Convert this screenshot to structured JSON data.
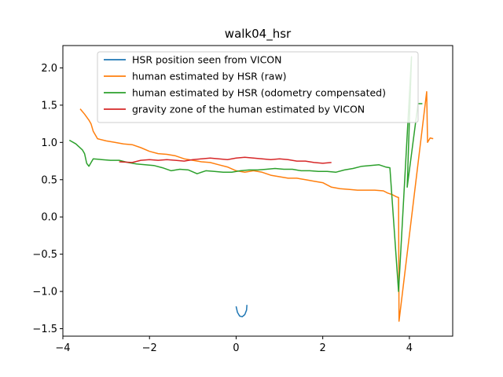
{
  "chart_data": {
    "type": "line",
    "title": "walk04_hsr",
    "xlabel": "",
    "ylabel": "",
    "xlim": [
      -4.0,
      5.0
    ],
    "ylim": [
      -1.6,
      2.3
    ],
    "x_ticks": [
      -4,
      -2,
      0,
      2,
      4
    ],
    "y_ticks": [
      -1.5,
      -1.0,
      -0.5,
      0.0,
      0.5,
      1.0,
      1.5,
      2.0
    ],
    "x_tick_labels": [
      "−4",
      "−2",
      "0",
      "2",
      "4"
    ],
    "y_tick_labels": [
      "−1.5",
      "−1.0",
      "−0.5",
      "0.0",
      "0.5",
      "1.0",
      "1.5",
      "2.0"
    ],
    "grid": false,
    "legend_position": "top-center",
    "series": [
      {
        "name": "HSR position seen from VICON",
        "color": "#1f77b4",
        "points": [
          [
            0.0,
            -1.2
          ],
          [
            0.03,
            -1.28
          ],
          [
            0.08,
            -1.33
          ],
          [
            0.14,
            -1.34
          ],
          [
            0.2,
            -1.31
          ],
          [
            0.24,
            -1.25
          ],
          [
            0.25,
            -1.18
          ]
        ]
      },
      {
        "name": "human estimated by HSR (raw)",
        "color": "#ff7f0e",
        "points": [
          [
            -3.6,
            1.45
          ],
          [
            -3.5,
            1.38
          ],
          [
            -3.4,
            1.3
          ],
          [
            -3.35,
            1.25
          ],
          [
            -3.3,
            1.15
          ],
          [
            -3.25,
            1.1
          ],
          [
            -3.2,
            1.05
          ],
          [
            -3.0,
            1.02
          ],
          [
            -2.8,
            1.0
          ],
          [
            -2.6,
            0.98
          ],
          [
            -2.4,
            0.97
          ],
          [
            -2.2,
            0.93
          ],
          [
            -2.0,
            0.88
          ],
          [
            -1.8,
            0.85
          ],
          [
            -1.6,
            0.84
          ],
          [
            -1.4,
            0.82
          ],
          [
            -1.2,
            0.78
          ],
          [
            -1.0,
            0.76
          ],
          [
            -0.8,
            0.74
          ],
          [
            -0.6,
            0.73
          ],
          [
            -0.4,
            0.7
          ],
          [
            -0.2,
            0.67
          ],
          [
            0.0,
            0.62
          ],
          [
            0.2,
            0.6
          ],
          [
            0.4,
            0.62
          ],
          [
            0.6,
            0.6
          ],
          [
            0.8,
            0.56
          ],
          [
            1.0,
            0.54
          ],
          [
            1.2,
            0.52
          ],
          [
            1.4,
            0.52
          ],
          [
            1.6,
            0.5
          ],
          [
            1.8,
            0.48
          ],
          [
            2.0,
            0.46
          ],
          [
            2.2,
            0.4
          ],
          [
            2.4,
            0.38
          ],
          [
            2.6,
            0.37
          ],
          [
            2.8,
            0.36
          ],
          [
            3.0,
            0.36
          ],
          [
            3.2,
            0.36
          ],
          [
            3.4,
            0.35
          ],
          [
            3.5,
            0.32
          ],
          [
            3.6,
            0.3
          ],
          [
            3.7,
            0.27
          ],
          [
            3.75,
            0.26
          ],
          [
            3.76,
            -1.4
          ],
          [
            4.4,
            1.68
          ],
          [
            4.42,
            1.0
          ],
          [
            4.48,
            1.06
          ],
          [
            4.55,
            1.05
          ]
        ]
      },
      {
        "name": "human estimated by HSR (odometry compensated)",
        "color": "#2ca02c",
        "points": [
          [
            -3.85,
            1.03
          ],
          [
            -3.7,
            0.98
          ],
          [
            -3.55,
            0.9
          ],
          [
            -3.5,
            0.85
          ],
          [
            -3.45,
            0.72
          ],
          [
            -3.4,
            0.68
          ],
          [
            -3.3,
            0.78
          ],
          [
            -3.1,
            0.77
          ],
          [
            -2.9,
            0.76
          ],
          [
            -2.7,
            0.76
          ],
          [
            -2.5,
            0.73
          ],
          [
            -2.3,
            0.71
          ],
          [
            -2.1,
            0.7
          ],
          [
            -1.9,
            0.69
          ],
          [
            -1.7,
            0.66
          ],
          [
            -1.5,
            0.62
          ],
          [
            -1.3,
            0.64
          ],
          [
            -1.1,
            0.63
          ],
          [
            -0.9,
            0.58
          ],
          [
            -0.7,
            0.62
          ],
          [
            -0.5,
            0.61
          ],
          [
            -0.3,
            0.6
          ],
          [
            -0.1,
            0.6
          ],
          [
            0.1,
            0.62
          ],
          [
            0.3,
            0.63
          ],
          [
            0.5,
            0.63
          ],
          [
            0.7,
            0.64
          ],
          [
            0.9,
            0.65
          ],
          [
            1.1,
            0.64
          ],
          [
            1.3,
            0.64
          ],
          [
            1.5,
            0.62
          ],
          [
            1.7,
            0.62
          ],
          [
            1.9,
            0.61
          ],
          [
            2.1,
            0.61
          ],
          [
            2.3,
            0.6
          ],
          [
            2.5,
            0.63
          ],
          [
            2.7,
            0.65
          ],
          [
            2.9,
            0.68
          ],
          [
            3.1,
            0.69
          ],
          [
            3.3,
            0.7
          ],
          [
            3.45,
            0.67
          ],
          [
            3.55,
            0.66
          ],
          [
            3.75,
            -1.0
          ],
          [
            4.05,
            2.15
          ],
          [
            3.95,
            0.4
          ],
          [
            4.2,
            1.52
          ],
          [
            4.3,
            1.52
          ]
        ]
      },
      {
        "name": "gravity zone of the human estimated by VICON",
        "color": "#d62728",
        "points": [
          [
            -2.7,
            0.74
          ],
          [
            -2.4,
            0.73
          ],
          [
            -2.2,
            0.76
          ],
          [
            -2.0,
            0.77
          ],
          [
            -1.8,
            0.76
          ],
          [
            -1.6,
            0.77
          ],
          [
            -1.4,
            0.76
          ],
          [
            -1.2,
            0.75
          ],
          [
            -1.0,
            0.77
          ],
          [
            -0.8,
            0.78
          ],
          [
            -0.6,
            0.79
          ],
          [
            -0.4,
            0.78
          ],
          [
            -0.2,
            0.77
          ],
          [
            0.0,
            0.79
          ],
          [
            0.2,
            0.8
          ],
          [
            0.4,
            0.79
          ],
          [
            0.6,
            0.78
          ],
          [
            0.8,
            0.77
          ],
          [
            1.0,
            0.78
          ],
          [
            1.2,
            0.77
          ],
          [
            1.4,
            0.75
          ],
          [
            1.6,
            0.75
          ],
          [
            1.8,
            0.73
          ],
          [
            2.0,
            0.72
          ],
          [
            2.2,
            0.73
          ]
        ]
      }
    ]
  }
}
